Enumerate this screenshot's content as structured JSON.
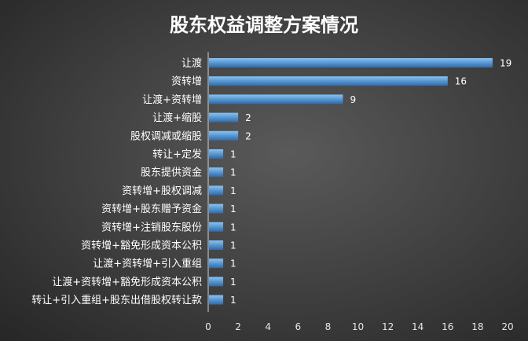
{
  "chart_data": {
    "type": "bar",
    "orientation": "horizontal",
    "title": "股东权益调整方案情况",
    "categories": [
      "让渡",
      "资转增",
      "让渡+资转增",
      "让渡+缩股",
      "股权调减或缩股",
      "转让+定发",
      "股东提供资金",
      "资转增+股权调减",
      "资转增+股东赠予资金",
      "资转增+注销股东股份",
      "资转增+豁免形成资本公积",
      "让渡+资转增+引入重组",
      "让渡+资转增+豁免形成资本公积",
      "转让+引入重组+股东出借股权转让款"
    ],
    "values": [
      19,
      16,
      9,
      2,
      2,
      1,
      1,
      1,
      1,
      1,
      1,
      1,
      1,
      1
    ],
    "xlim": [
      0,
      20
    ],
    "xticks": [
      0,
      2,
      4,
      6,
      8,
      10,
      12,
      14,
      16,
      18,
      20
    ],
    "data_labels": true,
    "grid": false,
    "legend": "none",
    "colors": {
      "bar_top": "#8cc3f0",
      "bar_mid": "#5b9bd5",
      "bar_bottom": "#2f6aa8",
      "axis": "#d0d0d0",
      "text": "#ffffff"
    }
  }
}
